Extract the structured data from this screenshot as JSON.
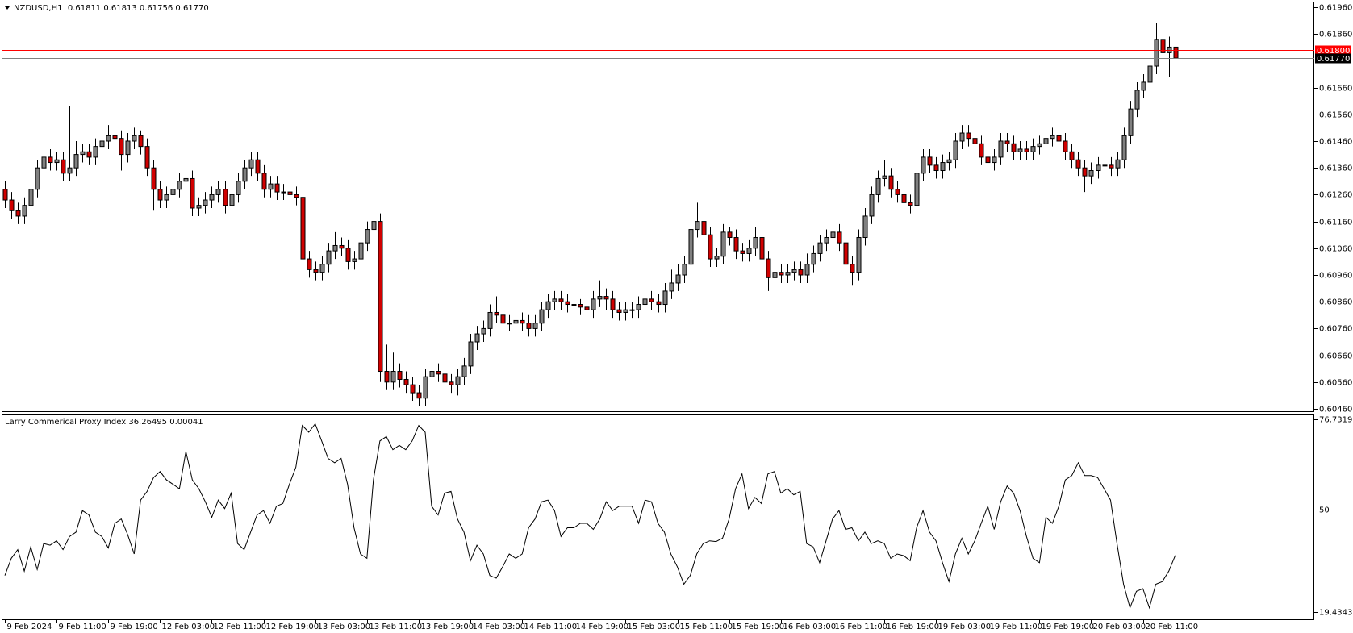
{
  "chart_data": [
    {
      "type": "candlestick",
      "title": "NZDUSD,H1  0.61811 0.61813 0.61756 0.61770",
      "up_color": "#808080",
      "down_color": "#d10000",
      "outline": "#000000",
      "xlim": [
        -0.5,
        202.5
      ],
      "ylim": [
        0.60451,
        0.61981
      ],
      "yticks": [
        {
          "value": 0.6196,
          "label": "0.61960"
        },
        {
          "value": 0.6186,
          "label": "0.61860"
        },
        {
          "value": 0.6166,
          "label": "0.61660"
        },
        {
          "value": 0.6156,
          "label": "0.61560"
        },
        {
          "value": 0.6146,
          "label": "0.61460"
        },
        {
          "value": 0.6136,
          "label": "0.61360"
        },
        {
          "value": 0.6126,
          "label": "0.61260"
        },
        {
          "value": 0.6116,
          "label": "0.61160"
        },
        {
          "value": 0.6106,
          "label": "0.61060"
        },
        {
          "value": 0.6096,
          "label": "0.60960"
        },
        {
          "value": 0.6086,
          "label": "0.60860"
        },
        {
          "value": 0.6076,
          "label": "0.60760"
        },
        {
          "value": 0.6066,
          "label": "0.60660"
        },
        {
          "value": 0.6056,
          "label": "0.60560"
        },
        {
          "value": 0.6046,
          "label": "0.60460"
        }
      ],
      "hlines": [
        {
          "value": 0.618,
          "label": "0.61800",
          "color": "#ff0000",
          "label_bg": "#ff0000"
        },
        {
          "value": 0.6177,
          "label": "0.61770",
          "color": "#808080",
          "label_bg": "#000000"
        }
      ],
      "open": [
        0.6128,
        0.6124,
        0.612,
        0.6118,
        0.6122,
        0.6128,
        0.6136,
        0.614,
        0.6138,
        0.6139,
        0.6134,
        0.6136,
        0.6141,
        0.6142,
        0.614,
        0.6144,
        0.6146,
        0.6148,
        0.6147,
        0.6141,
        0.6146,
        0.6148,
        0.6144,
        0.6136,
        0.6128,
        0.6124,
        0.6126,
        0.6128,
        0.6131,
        0.6132,
        0.6121,
        0.6122,
        0.6124,
        0.6126,
        0.6128,
        0.6122,
        0.6126,
        0.6131,
        0.6136,
        0.6139,
        0.6134,
        0.6128,
        0.613,
        0.6127,
        0.6127,
        0.6126,
        0.6125,
        0.6102,
        0.6098,
        0.6097,
        0.61,
        0.6105,
        0.6107,
        0.6106,
        0.6101,
        0.6102,
        0.6108,
        0.6113,
        0.6116,
        0.606,
        0.6056,
        0.606,
        0.6057,
        0.6055,
        0.6052,
        0.605,
        0.6058,
        0.606,
        0.6059,
        0.6056,
        0.6055,
        0.6058,
        0.6062,
        0.6071,
        0.6074,
        0.6076,
        0.6082,
        0.6081,
        0.6078,
        0.6078,
        0.6079,
        0.6078,
        0.6076,
        0.6078,
        0.6083,
        0.6086,
        0.6087,
        0.6086,
        0.6085,
        0.6085,
        0.6084,
        0.6083,
        0.6087,
        0.6088,
        0.6087,
        0.6083,
        0.6082,
        0.6083,
        0.6083,
        0.6085,
        0.6087,
        0.6086,
        0.6085,
        0.609,
        0.6093,
        0.6096,
        0.61,
        0.6113,
        0.6116,
        0.6111,
        0.6102,
        0.6103,
        0.6112,
        0.611,
        0.6105,
        0.6104,
        0.6106,
        0.611,
        0.6102,
        0.6095,
        0.6097,
        0.6096,
        0.6097,
        0.6098,
        0.6096,
        0.61,
        0.6104,
        0.6108,
        0.611,
        0.6112,
        0.6108,
        0.61,
        0.6097,
        0.611,
        0.6118,
        0.6126,
        0.6132,
        0.6133,
        0.6128,
        0.6126,
        0.6123,
        0.6122,
        0.6134,
        0.614,
        0.6137,
        0.6135,
        0.6138,
        0.6139,
        0.6146,
        0.6149,
        0.6147,
        0.6145,
        0.614,
        0.6138,
        0.614,
        0.6146,
        0.6145,
        0.6142,
        0.6143,
        0.6142,
        0.6144,
        0.6145,
        0.6147,
        0.6148,
        0.6146,
        0.6142,
        0.6139,
        0.6136,
        0.6133,
        0.6135,
        0.6137,
        0.6137,
        0.6136,
        0.6139,
        0.6148,
        0.6158,
        0.6165,
        0.6168,
        0.6174,
        0.6184,
        0.6179,
        0.61811
      ],
      "high": [
        0.6131,
        0.6127,
        0.6123,
        0.6125,
        0.6131,
        0.6139,
        0.615,
        0.6143,
        0.6142,
        0.6142,
        0.6159,
        0.6146,
        0.6145,
        0.6145,
        0.6147,
        0.6149,
        0.6152,
        0.6151,
        0.615,
        0.6149,
        0.6151,
        0.615,
        0.6147,
        0.6139,
        0.6131,
        0.6129,
        0.6131,
        0.6134,
        0.614,
        0.6135,
        0.6125,
        0.6127,
        0.6129,
        0.6131,
        0.6131,
        0.6129,
        0.6134,
        0.6139,
        0.6142,
        0.6142,
        0.6137,
        0.6133,
        0.6133,
        0.613,
        0.613,
        0.6129,
        0.6128,
        0.6105,
        0.6101,
        0.6103,
        0.6108,
        0.6112,
        0.611,
        0.6109,
        0.6105,
        0.6111,
        0.6116,
        0.6121,
        0.6119,
        0.607,
        0.6067,
        0.6063,
        0.606,
        0.6058,
        0.6055,
        0.6061,
        0.6063,
        0.6063,
        0.6062,
        0.6059,
        0.6061,
        0.6065,
        0.6074,
        0.6077,
        0.6079,
        0.6085,
        0.6088,
        0.6084,
        0.6081,
        0.6082,
        0.6082,
        0.6081,
        0.6081,
        0.6086,
        0.6089,
        0.609,
        0.609,
        0.6089,
        0.6088,
        0.6087,
        0.6087,
        0.609,
        0.6094,
        0.6091,
        0.609,
        0.6086,
        0.6086,
        0.6086,
        0.6088,
        0.609,
        0.609,
        0.6089,
        0.6093,
        0.6098,
        0.61,
        0.6103,
        0.6118,
        0.6123,
        0.6119,
        0.6114,
        0.6106,
        0.6115,
        0.6114,
        0.6113,
        0.6108,
        0.6109,
        0.6114,
        0.6113,
        0.6105,
        0.61,
        0.61,
        0.61,
        0.6101,
        0.6101,
        0.6104,
        0.6107,
        0.6111,
        0.6113,
        0.6115,
        0.6115,
        0.6111,
        0.6103,
        0.6113,
        0.6121,
        0.6129,
        0.6135,
        0.6139,
        0.6136,
        0.6131,
        0.6129,
        0.6126,
        0.6137,
        0.6143,
        0.6143,
        0.614,
        0.6141,
        0.6142,
        0.6149,
        0.6152,
        0.6152,
        0.615,
        0.6148,
        0.6143,
        0.6143,
        0.6149,
        0.6149,
        0.6148,
        0.6146,
        0.6146,
        0.6147,
        0.6148,
        0.615,
        0.6151,
        0.6151,
        0.6149,
        0.6145,
        0.6142,
        0.6139,
        0.6138,
        0.614,
        0.614,
        0.614,
        0.6142,
        0.6151,
        0.6161,
        0.6168,
        0.6171,
        0.6177,
        0.619,
        0.6192,
        0.6185,
        0.61813
      ],
      "low": [
        0.6121,
        0.6117,
        0.6115,
        0.6115,
        0.6119,
        0.6125,
        0.6133,
        0.6135,
        0.6135,
        0.6131,
        0.6131,
        0.6133,
        0.6138,
        0.6137,
        0.6137,
        0.6141,
        0.6143,
        0.6144,
        0.6135,
        0.6138,
        0.6143,
        0.6141,
        0.6133,
        0.612,
        0.6121,
        0.6121,
        0.6123,
        0.6125,
        0.6128,
        0.6118,
        0.6118,
        0.6119,
        0.6121,
        0.6123,
        0.6119,
        0.6119,
        0.6123,
        0.6128,
        0.6133,
        0.6131,
        0.6125,
        0.6125,
        0.6124,
        0.6124,
        0.6123,
        0.6122,
        0.6099,
        0.6095,
        0.6094,
        0.6094,
        0.6097,
        0.6102,
        0.6103,
        0.6098,
        0.6098,
        0.6099,
        0.6105,
        0.611,
        0.6056,
        0.6053,
        0.6053,
        0.6054,
        0.6052,
        0.6049,
        0.6047,
        0.6047,
        0.6055,
        0.6056,
        0.6053,
        0.6052,
        0.6051,
        0.6055,
        0.6059,
        0.6068,
        0.6071,
        0.6073,
        0.6078,
        0.607,
        0.6075,
        0.6075,
        0.6075,
        0.6073,
        0.6073,
        0.6075,
        0.608,
        0.6083,
        0.6083,
        0.6082,
        0.6082,
        0.6081,
        0.608,
        0.608,
        0.6084,
        0.6083,
        0.608,
        0.6079,
        0.6079,
        0.608,
        0.608,
        0.6082,
        0.6083,
        0.6082,
        0.6082,
        0.6087,
        0.609,
        0.6093,
        0.6097,
        0.611,
        0.6108,
        0.6099,
        0.6099,
        0.61,
        0.6107,
        0.6102,
        0.6101,
        0.6101,
        0.6103,
        0.6099,
        0.609,
        0.6092,
        0.6093,
        0.6093,
        0.6094,
        0.6093,
        0.6093,
        0.6097,
        0.6101,
        0.6105,
        0.6107,
        0.6105,
        0.6088,
        0.6092,
        0.6094,
        0.6107,
        0.6115,
        0.6123,
        0.6129,
        0.6125,
        0.6123,
        0.612,
        0.6119,
        0.6119,
        0.6131,
        0.6134,
        0.6132,
        0.6132,
        0.6135,
        0.6136,
        0.6143,
        0.6144,
        0.6142,
        0.6137,
        0.6135,
        0.6135,
        0.6137,
        0.6142,
        0.6139,
        0.6139,
        0.6139,
        0.6139,
        0.6141,
        0.6142,
        0.6144,
        0.6143,
        0.6139,
        0.6136,
        0.6133,
        0.6127,
        0.613,
        0.6132,
        0.6134,
        0.6133,
        0.6133,
        0.6136,
        0.6145,
        0.6155,
        0.6162,
        0.6165,
        0.6171,
        0.6176,
        0.617,
        0.61756
      ],
      "close": [
        0.6124,
        0.612,
        0.6118,
        0.6122,
        0.6128,
        0.6136,
        0.614,
        0.6138,
        0.6139,
        0.6134,
        0.6136,
        0.6141,
        0.6142,
        0.614,
        0.6144,
        0.6146,
        0.6148,
        0.6147,
        0.6141,
        0.6146,
        0.6148,
        0.6144,
        0.6136,
        0.6128,
        0.6124,
        0.6126,
        0.6128,
        0.6131,
        0.6132,
        0.6121,
        0.6122,
        0.6124,
        0.6126,
        0.6128,
        0.6122,
        0.6126,
        0.6131,
        0.6136,
        0.6139,
        0.6134,
        0.6128,
        0.613,
        0.6127,
        0.6127,
        0.6126,
        0.6125,
        0.6102,
        0.6098,
        0.6097,
        0.61,
        0.6105,
        0.6107,
        0.6106,
        0.6101,
        0.6102,
        0.6108,
        0.6113,
        0.6116,
        0.606,
        0.6056,
        0.606,
        0.6057,
        0.6055,
        0.6052,
        0.605,
        0.6058,
        0.606,
        0.6059,
        0.6056,
        0.6055,
        0.6058,
        0.6062,
        0.6071,
        0.6074,
        0.6076,
        0.6082,
        0.6081,
        0.6078,
        0.6078,
        0.6079,
        0.6078,
        0.6076,
        0.6078,
        0.6083,
        0.6086,
        0.6087,
        0.6086,
        0.6085,
        0.6085,
        0.6084,
        0.6083,
        0.6087,
        0.6088,
        0.6087,
        0.6083,
        0.6082,
        0.6083,
        0.6083,
        0.6085,
        0.6087,
        0.6086,
        0.6085,
        0.609,
        0.6093,
        0.6096,
        0.61,
        0.6113,
        0.6116,
        0.6111,
        0.6102,
        0.6103,
        0.6112,
        0.611,
        0.6105,
        0.6104,
        0.6106,
        0.611,
        0.6102,
        0.6095,
        0.6097,
        0.6096,
        0.6097,
        0.6098,
        0.6096,
        0.61,
        0.6104,
        0.6108,
        0.611,
        0.6112,
        0.6108,
        0.61,
        0.6097,
        0.611,
        0.6118,
        0.6126,
        0.6132,
        0.6133,
        0.6128,
        0.6126,
        0.6123,
        0.6122,
        0.6134,
        0.614,
        0.6137,
        0.6135,
        0.6138,
        0.6139,
        0.6146,
        0.6149,
        0.6147,
        0.6145,
        0.614,
        0.6138,
        0.614,
        0.6146,
        0.6145,
        0.6142,
        0.6143,
        0.6142,
        0.6144,
        0.6145,
        0.6147,
        0.6148,
        0.6146,
        0.6142,
        0.6139,
        0.6136,
        0.6133,
        0.6135,
        0.6137,
        0.6137,
        0.6136,
        0.6139,
        0.6148,
        0.6158,
        0.6165,
        0.6168,
        0.6174,
        0.6184,
        0.6179,
        0.61811,
        0.6177
      ]
    },
    {
      "type": "line",
      "title": "Larry Commerical Proxy Index 36.26495 0.00041",
      "color": "#000000",
      "xlim": [
        -0.5,
        202.5
      ],
      "ylim": [
        17.28,
        78.17
      ],
      "yticks": [
        76.73193,
        50,
        19.4343
      ],
      "levels": [
        50
      ],
      "xticks": [
        {
          "value": 0,
          "label": "9 Feb 2024"
        },
        {
          "value": 8,
          "label": "9 Feb 11:00"
        },
        {
          "value": 16,
          "label": "9 Feb 19:00"
        },
        {
          "value": 24,
          "label": "12 Feb 03:00"
        },
        {
          "value": 32,
          "label": "12 Feb 11:00"
        },
        {
          "value": 40,
          "label": "12 Feb 19:00"
        },
        {
          "value": 48,
          "label": "13 Feb 03:00"
        },
        {
          "value": 56,
          "label": "13 Feb 11:00"
        },
        {
          "value": 64,
          "label": "13 Feb 19:00"
        },
        {
          "value": 72,
          "label": "14 Feb 03:00"
        },
        {
          "value": 80,
          "label": "14 Feb 11:00"
        },
        {
          "value": 88,
          "label": "14 Feb 19:00"
        },
        {
          "value": 96,
          "label": "15 Feb 03:00"
        },
        {
          "value": 104,
          "label": "15 Feb 11:00"
        },
        {
          "value": 112,
          "label": "15 Feb 19:00"
        },
        {
          "value": 120,
          "label": "16 Feb 03:00"
        },
        {
          "value": 128,
          "label": "16 Feb 11:00"
        },
        {
          "value": 136,
          "label": "16 Feb 19:00"
        },
        {
          "value": 144,
          "label": "19 Feb 03:00"
        },
        {
          "value": 152,
          "label": "19 Feb 11:00"
        },
        {
          "value": 160,
          "label": "19 Feb 19:00"
        },
        {
          "value": 168,
          "label": "20 Feb 03:00"
        },
        {
          "value": 176,
          "label": "20 Feb 11:00"
        }
      ],
      "values": [
        30.3,
        35.4,
        38.0,
        31.6,
        38.8,
        32.1,
        39.8,
        39.3,
        40.6,
        38.0,
        41.9,
        43.2,
        49.6,
        48.3,
        43.2,
        41.9,
        38.5,
        45.8,
        47.1,
        42.4,
        36.7,
        52.7,
        55.3,
        59.4,
        61.2,
        58.7,
        57.4,
        56.1,
        67.2,
        58.7,
        56.1,
        52.2,
        47.6,
        52.7,
        50.2,
        54.8,
        39.8,
        38.0,
        43.2,
        48.3,
        49.6,
        45.8,
        50.9,
        51.7,
        57.4,
        62.5,
        74.9,
        72.9,
        75.4,
        70.3,
        65.1,
        63.8,
        65.1,
        57.4,
        44.5,
        36.7,
        35.4,
        58.7,
        70.3,
        71.6,
        67.7,
        69.0,
        67.7,
        70.3,
        74.9,
        72.9,
        50.9,
        48.3,
        54.8,
        55.3,
        47.1,
        43.2,
        34.7,
        39.3,
        36.7,
        30.3,
        29.5,
        32.9,
        36.7,
        35.4,
        36.7,
        44.5,
        47.1,
        52.2,
        52.7,
        49.6,
        41.9,
        44.5,
        44.5,
        45.8,
        45.8,
        44.0,
        47.1,
        52.2,
        49.6,
        50.9,
        50.9,
        50.9,
        45.8,
        52.7,
        52.2,
        45.8,
        43.2,
        36.7,
        32.9,
        27.7,
        30.3,
        36.7,
        39.8,
        40.6,
        40.4,
        41.4,
        47.1,
        56.1,
        60.5,
        50.2,
        53.5,
        51.7,
        60.5,
        61.2,
        54.8,
        56.1,
        54.3,
        55.3,
        39.8,
        38.8,
        34.1,
        40.6,
        47.1,
        49.6,
        44.0,
        44.5,
        40.6,
        43.2,
        39.8,
        40.6,
        39.8,
        35.4,
        36.7,
        36.2,
        34.7,
        44.5,
        49.6,
        43.2,
        40.6,
        34.1,
        28.5,
        36.7,
        41.4,
        36.7,
        40.6,
        45.8,
        50.9,
        44.0,
        52.2,
        56.9,
        54.8,
        49.6,
        41.9,
        35.4,
        34.1,
        47.6,
        45.8,
        50.9,
        58.7,
        60.0,
        63.8,
        60.0,
        60.0,
        59.4,
        56.1,
        52.7,
        39.8,
        27.7,
        20.7,
        25.6,
        26.4,
        20.7,
        27.7,
        28.5,
        31.6,
        36.26495
      ]
    }
  ]
}
